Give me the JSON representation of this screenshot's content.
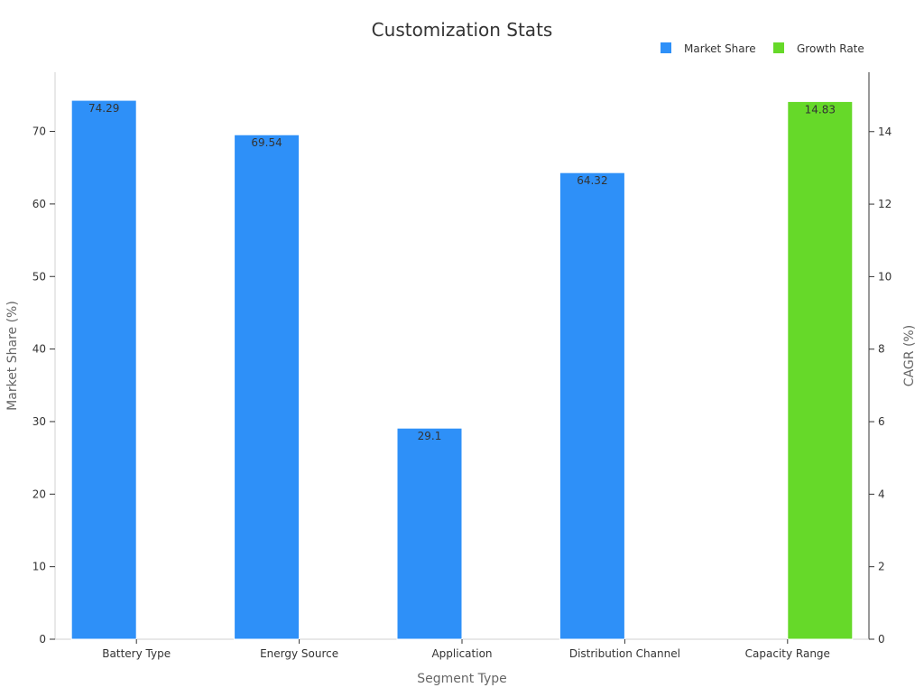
{
  "chart_data": {
    "type": "bar",
    "title": "Customization Stats",
    "xlabel": "Segment Type",
    "ylabel": "Market Share (%)",
    "y2label": "CAGR (%)",
    "categories": [
      "Battery Type",
      "Energy Source",
      "Application",
      "Distribution Channel",
      "Capacity Range"
    ],
    "ylim": [
      0,
      78
    ],
    "y2lim": [
      0,
      15.6
    ],
    "yticks": [
      0,
      10,
      20,
      30,
      40,
      50,
      60,
      70
    ],
    "y2ticks": [
      0,
      2,
      4,
      6,
      8,
      10,
      12,
      14
    ],
    "legend_position": "top-right",
    "grid": false,
    "series": [
      {
        "name": "Market Share",
        "axis": "left",
        "color": "#2e90f8",
        "values": [
          74.29,
          69.54,
          29.1,
          64.32,
          null
        ],
        "labels": [
          "74.29",
          "69.54",
          "29.1",
          "64.32",
          ""
        ]
      },
      {
        "name": "Growth Rate",
        "axis": "right",
        "color": "#66d929",
        "values": [
          null,
          null,
          null,
          null,
          14.83
        ],
        "labels": [
          "",
          "",
          "",
          "",
          "14.83"
        ]
      }
    ]
  }
}
